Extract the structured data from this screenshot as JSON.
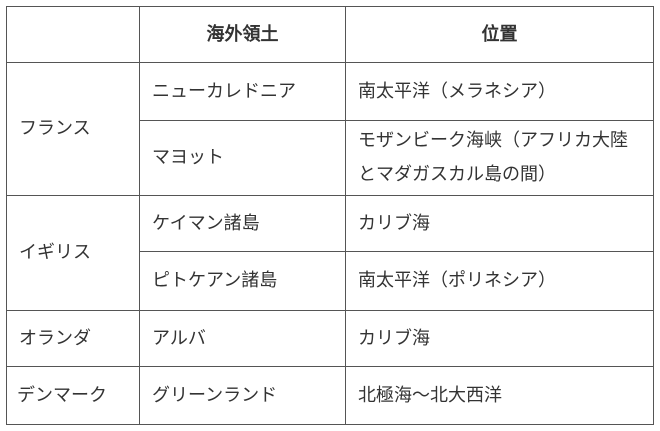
{
  "headers": [
    "",
    "海外領土",
    "位置"
  ],
  "rows": [
    {
      "country": "フランス",
      "territory": "ニューカレドニア",
      "location": "南太平洋（メラネシア）"
    },
    {
      "territory": "マヨット",
      "location": "モザンビーク海峡（アフリカ大陸とマダガスカル島の間）"
    },
    {
      "country": "イギリス",
      "territory": "ケイマン諸島",
      "location": "カリブ海"
    },
    {
      "territory": "ピトケアン諸島",
      "location": "南太平洋（ポリネシア）"
    },
    {
      "country": "オランダ",
      "territory": "アルバ",
      "location": "カリブ海"
    },
    {
      "country": "デンマーク",
      "territory": "グリーンランド",
      "location": "北極海〜北大西洋"
    }
  ]
}
